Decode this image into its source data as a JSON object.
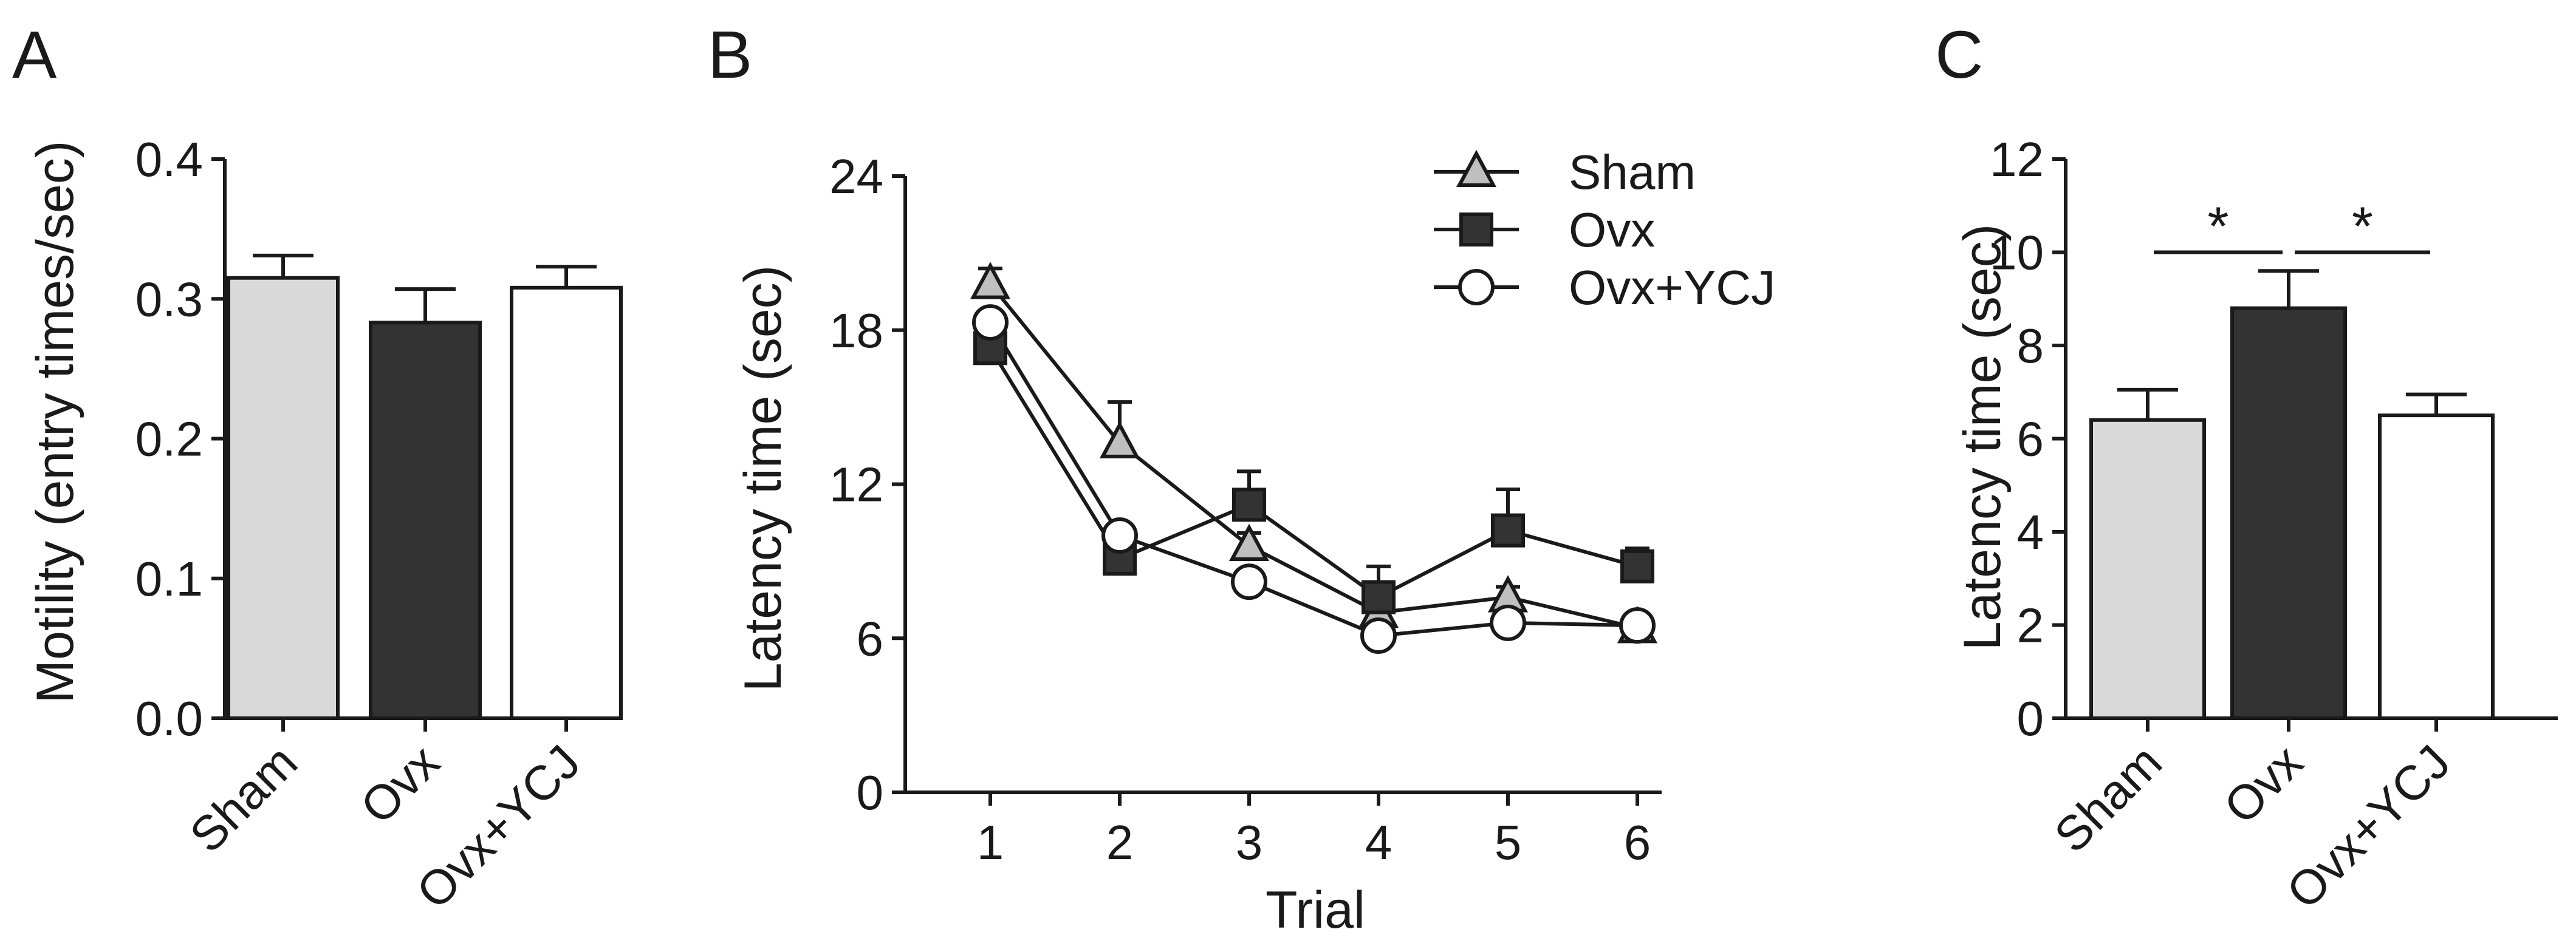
{
  "chart_data": [
    {
      "panel": "A",
      "type": "bar",
      "ylabel": "Motility (entry times/sec)",
      "xlabel": "",
      "ylim": [
        0,
        0.4
      ],
      "yticks": [
        "0.0",
        "0.1",
        "0.2",
        "0.3",
        "0.4"
      ],
      "yticks_values": [
        0,
        0.1,
        0.2,
        0.3,
        0.4
      ],
      "categories": [
        "Sham",
        "Ovx",
        "Ovx+YCJ"
      ],
      "values": [
        0.315,
        0.283,
        0.308
      ],
      "errors": [
        0.016,
        0.024,
        0.015
      ],
      "colors": [
        "#d9d9d9",
        "#333333",
        "#ffffff"
      ]
    },
    {
      "panel": "B",
      "type": "line",
      "xlabel": "Trial",
      "ylabel": "Latency time (sec)",
      "ylim": [
        0,
        24
      ],
      "xlim": [
        0.6,
        6.4
      ],
      "yticks": [
        "0",
        "6",
        "12",
        "18",
        "24"
      ],
      "yticks_values": [
        0,
        6,
        12,
        18,
        24
      ],
      "x": [
        1,
        2,
        3,
        4,
        5,
        6
      ],
      "xticks": [
        "1",
        "2",
        "3",
        "4",
        "5",
        "6"
      ],
      "legend_position": "top-right",
      "series": [
        {
          "name": "Sham",
          "marker": "triangle",
          "color": "#bfbfbf",
          "values": [
            19.8,
            13.6,
            9.6,
            7.0,
            7.6,
            6.4
          ],
          "errors": [
            0.6,
            1.6,
            0.5,
            0.4,
            0.4,
            0.3
          ]
        },
        {
          "name": "Ovx",
          "marker": "square",
          "color": "#333333",
          "values": [
            17.3,
            9.1,
            11.2,
            7.6,
            10.2,
            8.8
          ],
          "errors": [
            0.5,
            0.6,
            1.3,
            1.2,
            1.6,
            0.7
          ]
        },
        {
          "name": "Ovx+YCJ",
          "marker": "circle",
          "color": "#ffffff",
          "values": [
            18.3,
            10.0,
            8.2,
            6.1,
            6.6,
            6.5
          ],
          "errors": [
            0.4,
            0.4,
            0.3,
            0.3,
            0.3,
            0.3
          ]
        }
      ]
    },
    {
      "panel": "C",
      "type": "bar",
      "ylabel": "Latency time (sec)",
      "xlabel": "",
      "ylim": [
        0,
        12
      ],
      "yticks": [
        "0",
        "2",
        "4",
        "6",
        "8",
        "10",
        "12"
      ],
      "yticks_values": [
        0,
        2,
        4,
        6,
        8,
        10,
        12
      ],
      "categories": [
        "Sham",
        "Ovx",
        "Ovx+YCJ"
      ],
      "values": [
        6.4,
        8.8,
        6.5
      ],
      "errors": [
        0.65,
        0.8,
        0.45
      ],
      "colors": [
        "#d9d9d9",
        "#333333",
        "#ffffff"
      ],
      "significance": [
        {
          "from": 0,
          "to": 1,
          "label": "*",
          "y": 10.0
        },
        {
          "from": 1,
          "to": 2,
          "label": "*",
          "y": 10.0
        }
      ]
    }
  ]
}
